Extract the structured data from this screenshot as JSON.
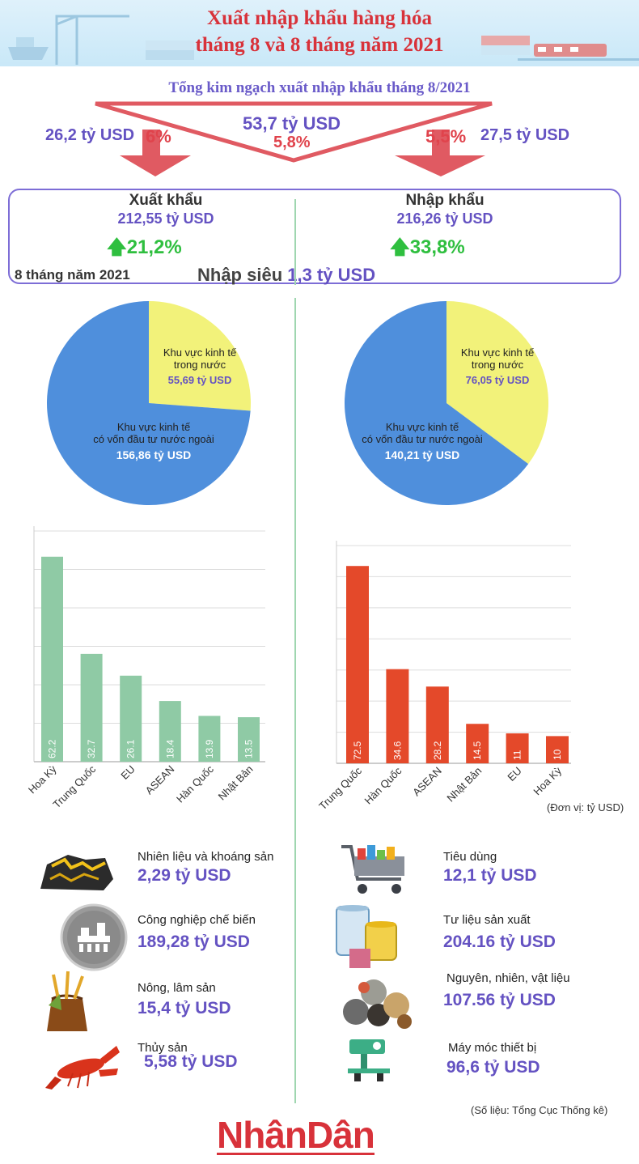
{
  "header": {
    "title_line1": "Xuất nhập khẩu hàng hóa",
    "title_line2": "tháng 8 và 8 tháng năm 2021"
  },
  "august": {
    "title": "Tổng kim ngạch xuất nhập khẩu tháng 8/2021",
    "total_value": "53,7 tỷ USD",
    "total_change": "5,8%",
    "export_value": "26,2 tỷ USD",
    "export_change": "6%",
    "import_value": "27,5 tỷ USD",
    "import_change": "5,5%"
  },
  "summary": {
    "export_label": "Xuất khẩu",
    "export_value": "212,55 tỷ USD",
    "export_growth": "21,2%",
    "import_label": "Nhập khẩu",
    "import_value": "216,26 tỷ USD",
    "import_growth": "33,8%",
    "period": "8 tháng năm 2021",
    "balance_label": "Nhập siêu",
    "balance_value": "1,3 tỷ USD"
  },
  "colors": {
    "accent_purple": "#6452c2",
    "accent_red": "#d8323a",
    "growth_green": "#2fbf3f",
    "pie_blue": "#4f8fdc",
    "pie_yellow": "#f2f27a",
    "bar_green": "#8fcaa5",
    "bar_orange": "#e4492a"
  },
  "chart_data": [
    {
      "type": "pie",
      "slices": [
        {
          "label_line1": "Khu vực kinh tế",
          "label_line2": "trong nước",
          "value": 55.69,
          "value_label": "55,69 tỷ USD",
          "color": "#f2f27a"
        },
        {
          "label_line1": "Khu vực kinh tế",
          "label_line2": "có vốn đầu tư nước ngoài",
          "value": 156.86,
          "value_label": "156,86 tỷ USD",
          "color": "#4f8fdc"
        }
      ]
    },
    {
      "type": "pie",
      "slices": [
        {
          "label_line1": "Khu vực kinh tế",
          "label_line2": "trong nước",
          "value": 76.05,
          "value_label": "76,05 tỷ USD",
          "color": "#f2f27a"
        },
        {
          "label_line1": "Khu vực kinh tế",
          "label_line2": "có vốn đầu tư nước ngoài",
          "value": 140.21,
          "value_label": "140,21 tỷ USD",
          "color": "#4f8fdc"
        }
      ]
    },
    {
      "type": "bar",
      "categories": [
        "Hoa Kỳ",
        "Trung Quốc",
        "EU",
        "ASEAN",
        "Hàn Quốc",
        "Nhật Bản"
      ],
      "values": [
        62.2,
        32.7,
        26.1,
        18.4,
        13.9,
        13.5
      ],
      "value_labels": [
        "62.2",
        "32.7",
        "26.1",
        "18.4",
        "13.9",
        "13.5"
      ],
      "ylim": [
        0,
        70
      ],
      "grid": true,
      "color": "#8fcaa5"
    },
    {
      "type": "bar",
      "categories": [
        "Trung Quốc",
        "Hàn Quốc",
        "ASEAN",
        "Nhật Bản",
        "EU",
        "Hoa Kỳ"
      ],
      "values": [
        72.5,
        34.6,
        28.2,
        14.5,
        11,
        10
      ],
      "value_labels": [
        "72.5",
        "34.6",
        "28.2",
        "14.5",
        "11",
        "10"
      ],
      "ylim": [
        0,
        80
      ],
      "grid": true,
      "color": "#e4492a"
    }
  ],
  "unit_note": "(Đơn vị: tỷ USD)",
  "export_groups": [
    {
      "label": "Nhiên liệu và khoáng sản",
      "value": "2,29 tỷ USD",
      "icon": "coal-icon"
    },
    {
      "label": "Công nghiệp chế biến",
      "value": "189,28 tỷ USD",
      "icon": "factory-icon"
    },
    {
      "label": "Nông, lâm sản",
      "value": "15,4 tỷ USD",
      "icon": "grain-sack-icon"
    },
    {
      "label": "Thủy sản",
      "value": "5,58 tỷ USD",
      "icon": "lobster-icon"
    }
  ],
  "import_groups": [
    {
      "label": "Tiêu dùng",
      "value": "12,1 tỷ USD",
      "icon": "shopping-cart-icon"
    },
    {
      "label": "Tư liệu sản xuất",
      "value": "204.16 tỷ USD",
      "icon": "barrels-icon"
    },
    {
      "label": "Nguyên, nhiên, vật liệu",
      "value": "107.56 tỷ USD",
      "icon": "raw-materials-icon"
    },
    {
      "label": "Máy móc thiết bị",
      "value": "96,6 tỷ USD",
      "icon": "machine-icon"
    }
  ],
  "source": "(Số liệu: Tổng Cục Thống kê)",
  "logo_text": "NhânDân"
}
